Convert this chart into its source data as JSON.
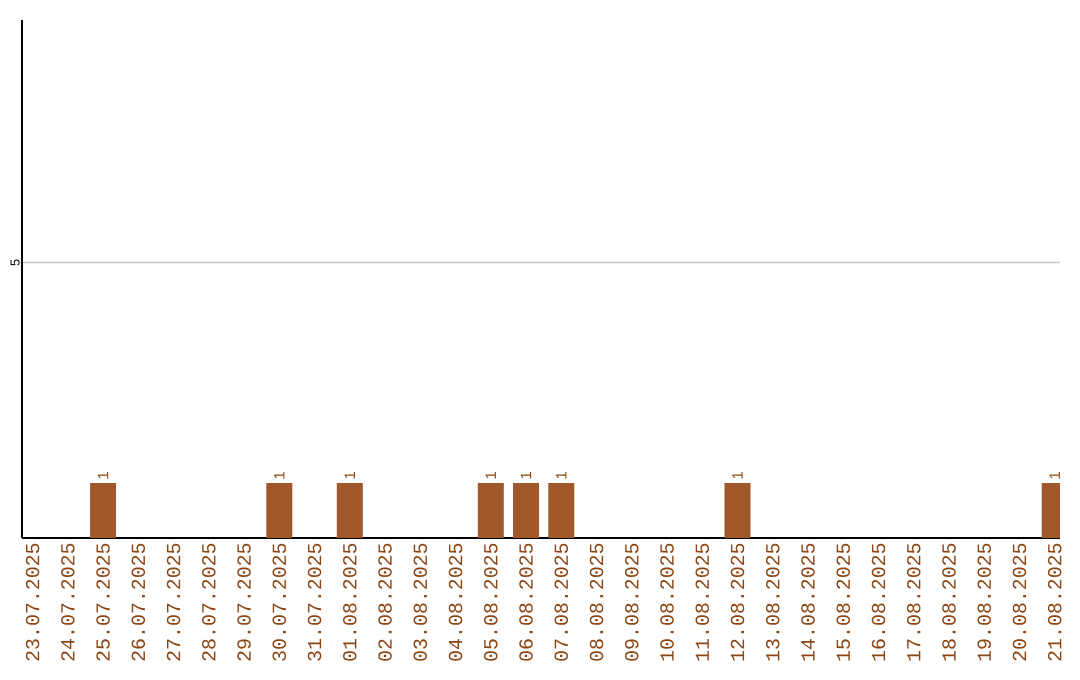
{
  "chart_data": {
    "type": "bar",
    "categories": [
      "23.07.2025",
      "24.07.2025",
      "25.07.2025",
      "26.07.2025",
      "27.07.2025",
      "28.07.2025",
      "29.07.2025",
      "30.07.2025",
      "31.07.2025",
      "01.08.2025",
      "02.08.2025",
      "03.08.2025",
      "04.08.2025",
      "05.08.2025",
      "06.08.2025",
      "07.08.2025",
      "08.08.2025",
      "09.08.2025",
      "10.08.2025",
      "11.08.2025",
      "12.08.2025",
      "13.08.2025",
      "14.08.2025",
      "15.08.2025",
      "16.08.2025",
      "17.08.2025",
      "18.08.2025",
      "19.08.2025",
      "20.08.2025",
      "21.08.2025"
    ],
    "values": [
      0,
      0,
      1,
      0,
      0,
      0,
      0,
      1,
      0,
      1,
      0,
      0,
      0,
      1,
      1,
      1,
      0,
      0,
      0,
      0,
      1,
      0,
      0,
      0,
      0,
      0,
      0,
      0,
      0,
      1
    ],
    "value_labels": [
      null,
      null,
      "1",
      null,
      null,
      null,
      null,
      "1",
      null,
      "1",
      null,
      null,
      null,
      "1",
      "1",
      "1",
      null,
      null,
      null,
      null,
      "1",
      null,
      null,
      null,
      null,
      null,
      null,
      null,
      null,
      "1"
    ],
    "color": "#a0572a",
    "ylim": [
      0,
      9.4
    ],
    "yticks": [
      5
    ],
    "grid": "y"
  }
}
